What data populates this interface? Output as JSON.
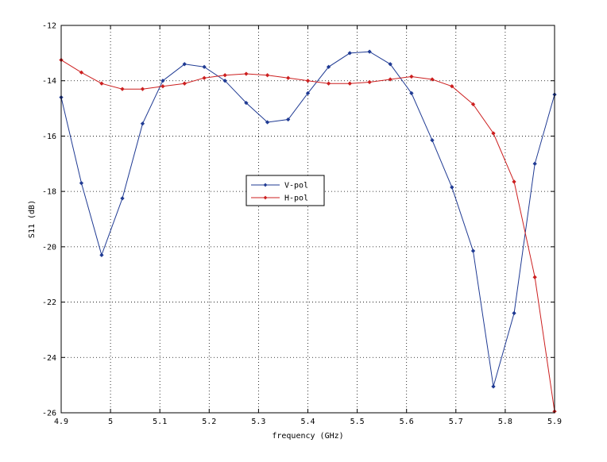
{
  "chart_data": {
    "type": "line",
    "title": "",
    "xlabel": "frequency (GHz)",
    "ylabel": "S11 (dB)",
    "xlim": [
      4.9,
      5.9
    ],
    "ylim": [
      -26,
      -12
    ],
    "xticks": [
      "4.9",
      "5",
      "5.1",
      "5.2",
      "5.3",
      "5.4",
      "5.5",
      "5.6",
      "5.7",
      "5.8",
      "5.9"
    ],
    "yticks": [
      "-12",
      "-14",
      "-16",
      "-18",
      "-20",
      "-22",
      "-24",
      "-26"
    ],
    "grid": true,
    "legend_position": "center",
    "series": [
      {
        "name": "V-pol",
        "color": "#1f3a93",
        "x": [
          4.9,
          4.941,
          4.982,
          5.024,
          5.065,
          5.106,
          5.15,
          5.19,
          5.232,
          5.275,
          5.318,
          5.36,
          5.4,
          5.442,
          5.485,
          5.525,
          5.567,
          5.61,
          5.652,
          5.692,
          5.735,
          5.776,
          5.818,
          5.86,
          5.9
        ],
        "y": [
          -14.6,
          -17.7,
          -20.3,
          -18.25,
          -15.55,
          -14.0,
          -13.4,
          -13.5,
          -14.0,
          -14.8,
          -15.5,
          -15.4,
          -14.45,
          -13.5,
          -13.0,
          -12.95,
          -13.4,
          -14.45,
          -16.15,
          -17.85,
          -20.15,
          -25.05,
          -22.4,
          -17.0,
          -14.5
        ]
      },
      {
        "name": "H-pol",
        "color": "#cc1f1f",
        "x": [
          4.9,
          4.941,
          4.982,
          5.024,
          5.065,
          5.106,
          5.15,
          5.19,
          5.232,
          5.275,
          5.318,
          5.36,
          5.4,
          5.442,
          5.485,
          5.525,
          5.567,
          5.61,
          5.652,
          5.692,
          5.735,
          5.776,
          5.818,
          5.86,
          5.9
        ],
        "y": [
          -13.25,
          -13.7,
          -14.1,
          -14.3,
          -14.3,
          -14.2,
          -14.1,
          -13.9,
          -13.8,
          -13.75,
          -13.8,
          -13.9,
          -14.0,
          -14.1,
          -14.1,
          -14.05,
          -13.95,
          -13.85,
          -13.95,
          -14.2,
          -14.85,
          -15.9,
          -17.65,
          -21.1,
          -25.95
        ]
      }
    ]
  }
}
